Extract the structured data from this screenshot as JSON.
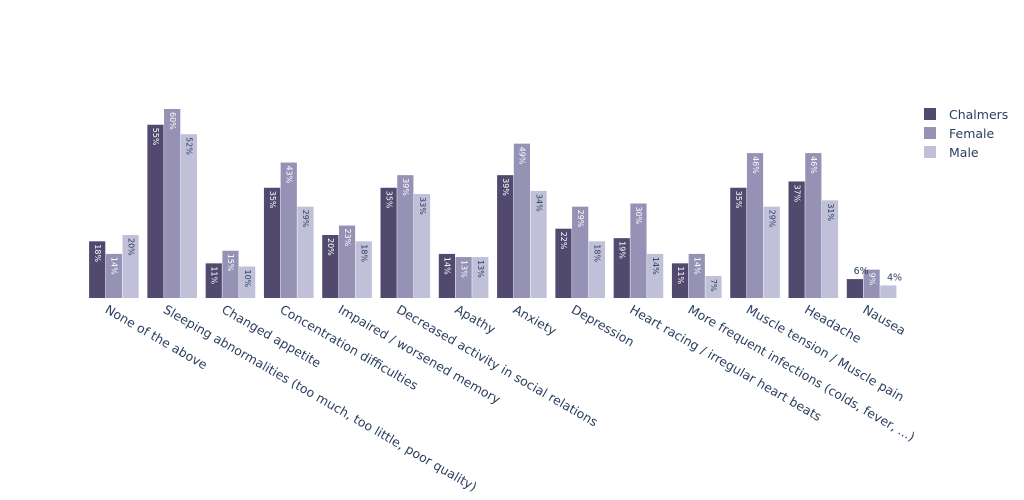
{
  "chart_data": {
    "type": "bar",
    "title": "",
    "xlabel": "",
    "ylabel": "",
    "ylim": [
      0,
      62
    ],
    "grid": false,
    "legend_position": "right",
    "categories": [
      "None of the above",
      "Sleeping abnormalities (too much, too little, poor quality)",
      "Changed appetite",
      "Concentration difficulties",
      "Impaired / worsened memory",
      "Decreased  activity in social relations",
      "Apathy",
      "Anxiety",
      "Depression",
      "Heart racing / irregular heart beats",
      "More frequent infections (colds, fever, ...)",
      "Muscle tension / Muscle pain",
      "Headache",
      "Nausea"
    ],
    "series": [
      {
        "name": "Chalmers",
        "color": "#524a6e",
        "label_color": "#ffffff",
        "values": [
          18,
          55,
          11,
          35,
          20,
          35,
          14,
          39,
          22,
          19,
          11,
          35,
          37,
          6
        ],
        "labels": [
          "18%",
          "55%",
          "11%",
          "35%",
          "20%",
          "35%",
          "14%",
          "39%",
          "22%",
          "19%",
          "11%",
          "35%",
          "37%",
          "6%"
        ]
      },
      {
        "name": "Female",
        "color": "#9592b5",
        "label_color": "#ffffff",
        "values": [
          14,
          60,
          15,
          43,
          23,
          39,
          13,
          49,
          29,
          30,
          14,
          46,
          46,
          9
        ],
        "labels": [
          "14%",
          "60%",
          "15%",
          "43%",
          "23%",
          "39%",
          "13%",
          "49%",
          "29%",
          "30%",
          "14%",
          "46%",
          "46%",
          "9%"
        ]
      },
      {
        "name": "Male",
        "color": "#c0c0d8",
        "label_color": "#2a3f5f",
        "values": [
          20,
          52,
          10,
          29,
          18,
          33,
          13,
          34,
          18,
          14,
          7,
          29,
          31,
          4
        ],
        "labels": [
          "20%",
          "52%",
          "10%",
          "29%",
          "18%",
          "33%",
          "13%",
          "34%",
          "18%",
          "14%",
          "7%",
          "29%",
          "31%",
          "4%"
        ]
      }
    ]
  }
}
